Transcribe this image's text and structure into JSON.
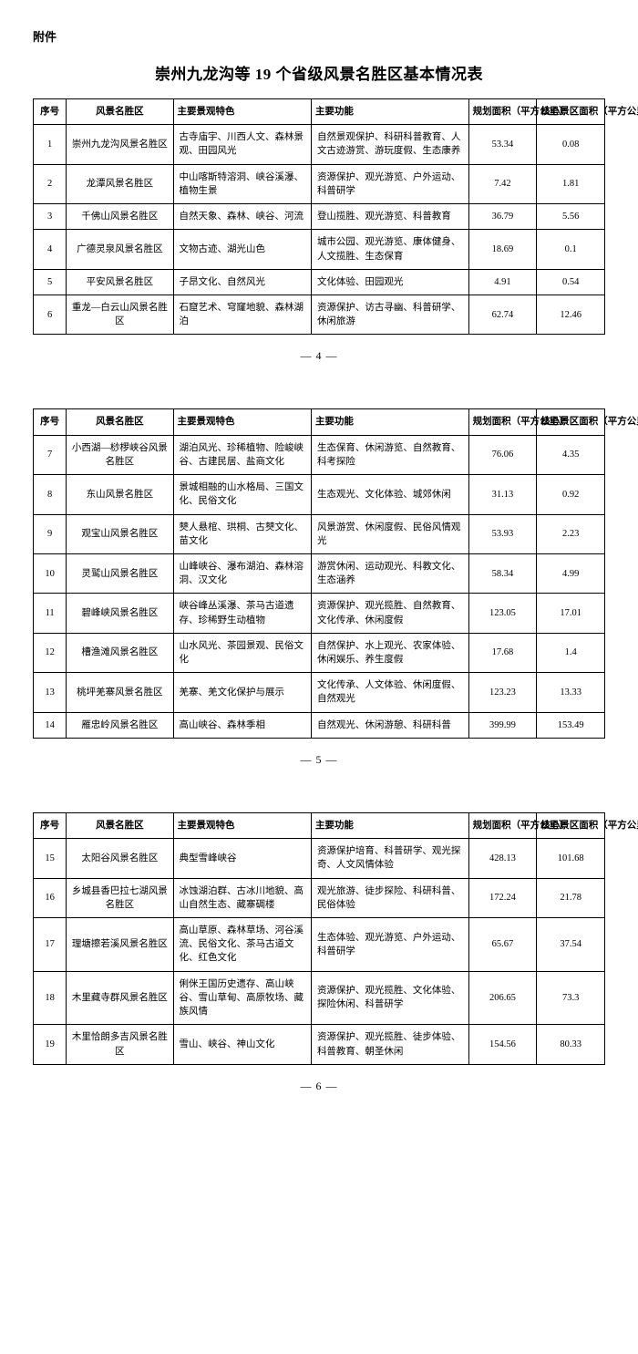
{
  "attachment_label": "附件",
  "title": "崇州九龙沟等 19 个省级风景名胜区基本情况表",
  "columns": [
    "序号",
    "风景名胜区",
    "主要景观特色",
    "主要功能",
    "规划面积（平方公里）",
    "核心景区面积（平方公里）"
  ],
  "page_numbers": [
    "— 4 —",
    "— 5 —",
    "— 6 —"
  ],
  "rows_p1": [
    {
      "seq": "1",
      "name": "崇州九龙沟风景名胜区",
      "feat": "古寺庙宇、川西人文、森林景观、田园风光",
      "func": "自然景观保护、科研科普教育、人文古迹游赏、游玩度假、生态康养",
      "area": "53.34",
      "core": "0.08"
    },
    {
      "seq": "2",
      "name": "龙潭风景名胜区",
      "feat": "中山喀斯特溶洞、峡谷溪瀑、植物生景",
      "func": "资源保护、观光游览、户外运动、科普研学",
      "area": "7.42",
      "core": "1.81"
    },
    {
      "seq": "3",
      "name": "千佛山风景名胜区",
      "feat": "自然天象、森林、峡谷、河流",
      "func": "登山揽胜、观光游览、科普教育",
      "area": "36.79",
      "core": "5.56"
    },
    {
      "seq": "4",
      "name": "广德灵泉风景名胜区",
      "feat": "文物古迹、湖光山色",
      "func": "城市公园、观光游览、康体健身、人文揽胜、生态保育",
      "area": "18.69",
      "core": "0.1"
    },
    {
      "seq": "5",
      "name": "平安风景名胜区",
      "feat": "子昂文化、自然风光",
      "func": "文化体验、田园观光",
      "area": "4.91",
      "core": "0.54"
    },
    {
      "seq": "6",
      "name": "重龙—白云山风景名胜区",
      "feat": "石窟艺术、穹窿地貌、森林湖泊",
      "func": "资源保护、访古寻幽、科普研学、休闲旅游",
      "area": "62.74",
      "core": "12.46"
    }
  ],
  "rows_p2": [
    {
      "seq": "7",
      "name": "小西湖—桫椤峡谷风景名胜区",
      "feat": "湖泊风光、珍稀植物、险峻峡谷、古建民居、盐商文化",
      "func": "生态保育、休闲游览、自然教育、科考探险",
      "area": "76.06",
      "core": "4.35"
    },
    {
      "seq": "8",
      "name": "东山风景名胜区",
      "feat": "景城相融的山水格局、三国文化、民俗文化",
      "func": "生态观光、文化体验、城郊休闲",
      "area": "31.13",
      "core": "0.92"
    },
    {
      "seq": "9",
      "name": "观宝山风景名胜区",
      "feat": "僰人悬棺、珙桐、古僰文化、苗文化",
      "func": "风景游赏、休闲度假、民俗风情观光",
      "area": "53.93",
      "core": "2.23"
    },
    {
      "seq": "10",
      "name": "灵鹫山风景名胜区",
      "feat": "山峰峡谷、瀑布湖泊、森林溶洞、汉文化",
      "func": "游赏休闲、运动观光、科教文化、生态涵养",
      "area": "58.34",
      "core": "4.99"
    },
    {
      "seq": "11",
      "name": "碧峰峡风景名胜区",
      "feat": "峡谷峰丛溪瀑、茶马古道遗存、珍稀野生动植物",
      "func": "资源保护、观光揽胜、自然教育、文化传承、休闲度假",
      "area": "123.05",
      "core": "17.01"
    },
    {
      "seq": "12",
      "name": "槽渔滩风景名胜区",
      "feat": "山水风光、茶园景观、民俗文化",
      "func": "自然保护、水上观光、农家体验、休闲娱乐、养生度假",
      "area": "17.68",
      "core": "1.4"
    },
    {
      "seq": "13",
      "name": "桃坪羌寨风景名胜区",
      "feat": "羌寨、羌文化保护与展示",
      "func": "文化传承、人文体验、休闲度假、自然观光",
      "area": "123.23",
      "core": "13.33"
    },
    {
      "seq": "14",
      "name": "雁忠岭风景名胜区",
      "feat": "高山峡谷、森林季相",
      "func": "自然观光、休闲游憩、科研科普",
      "area": "399.99",
      "core": "153.49"
    }
  ],
  "rows_p3": [
    {
      "seq": "15",
      "name": "太阳谷风景名胜区",
      "feat": "典型雪峰峡谷",
      "func": "资源保护培育、科普研学、观光探奇、人文风情体验",
      "area": "428.13",
      "core": "101.68"
    },
    {
      "seq": "16",
      "name": "乡城县香巴拉七湖风景名胜区",
      "feat": "冰蚀湖泊群、古冰川地貌、高山自然生态、藏寨碉楼",
      "func": "观光旅游、徒步探险、科研科普、民俗体验",
      "area": "172.24",
      "core": "21.78"
    },
    {
      "seq": "17",
      "name": "理塘擦若溪风景名胜区",
      "feat": "高山草原、森林草场、河谷溪流、民俗文化、茶马古道文化、红色文化",
      "func": "生态体验、观光游览、户外运动、科普研学",
      "area": "65.67",
      "core": "37.54"
    },
    {
      "seq": "18",
      "name": "木里藏寺群风景名胜区",
      "feat": "俐侎王国历史遗存、高山峡谷、雪山草甸、高原牧场、藏族风情",
      "func": "资源保护、观光揽胜、文化体验、探险休闲、科普研学",
      "area": "206.65",
      "core": "73.3"
    },
    {
      "seq": "19",
      "name": "木里恰朗多吉风景名胜区",
      "feat": "雪山、峡谷、神山文化",
      "func": "资源保护、观光揽胜、徒步体验、科普教育、朝圣休闲",
      "area": "154.56",
      "core": "80.33"
    }
  ]
}
